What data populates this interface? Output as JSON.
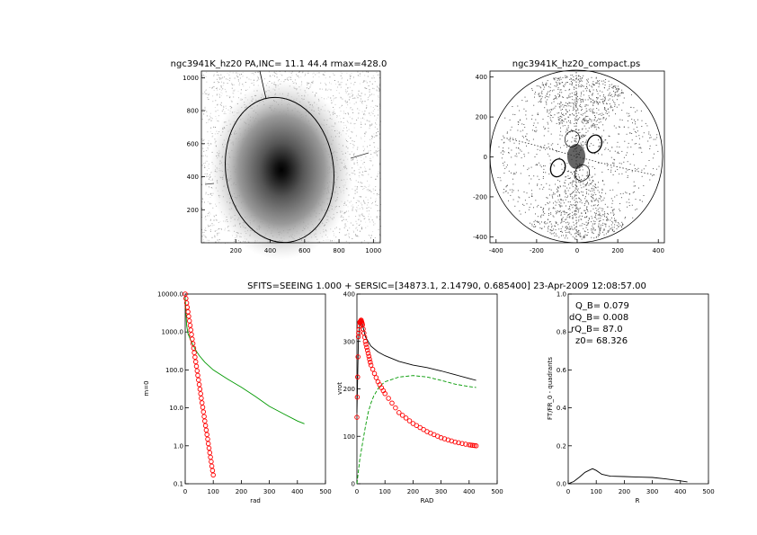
{
  "figure": {
    "suptitle": "SFITS=SEEING 1.000 + SERSIC=[34873.1, 2.14790, 0.685400]  23-Apr-2009 12:08:57.00"
  },
  "chart_data": [
    {
      "id": "image",
      "type": "heatmap",
      "title": "ngc3941K_hz20 PA,INC= 11.1 44.4 rmax=428.0",
      "xlabel": "",
      "ylabel": "",
      "xlim": [
        0,
        1040
      ],
      "ylim": [
        0,
        1040
      ],
      "xticks": [
        200,
        400,
        600,
        800,
        1000
      ],
      "yticks": [
        200,
        400,
        600,
        800,
        1000
      ],
      "galaxy_center": [
        460,
        430
      ],
      "ellipse": {
        "cx": 452,
        "cy": 400,
        "rx": 310,
        "ry": 410
      }
    },
    {
      "id": "compact",
      "type": "scatter",
      "title": "ngc3941K_hz20_compact.ps",
      "xlabel": "",
      "ylabel": "",
      "xlim": [
        -430,
        430
      ],
      "ylim": [
        -430,
        430
      ],
      "xticks": [
        -400,
        -200,
        0,
        200,
        400
      ],
      "yticks": [
        -400,
        -200,
        0,
        200,
        400
      ],
      "circle_radius": 428,
      "small_ellipses": [
        {
          "cx": 85,
          "cy": 65,
          "rx": 35,
          "ry": 45
        },
        {
          "cx": -95,
          "cy": -55,
          "rx": 35,
          "ry": 45
        },
        {
          "cx": -25,
          "cy": 90,
          "rx": 35,
          "ry": 40
        },
        {
          "cx": 25,
          "cy": -80,
          "rx": 35,
          "ry": 40
        }
      ]
    },
    {
      "id": "profile",
      "type": "line",
      "xlabel": "rad",
      "ylabel": "m=0",
      "xlim": [
        0,
        500
      ],
      "ylim": [
        0.1,
        10000
      ],
      "yscale": "log",
      "xticks": [
        0,
        100,
        200,
        300,
        400,
        500
      ],
      "yticks": [
        0.1,
        1,
        10,
        100,
        1000,
        10000
      ],
      "ytick_labels": [
        "0.1",
        "1.0",
        "10.0",
        "100.0",
        "1000.0",
        "10000.0"
      ],
      "series": [
        {
          "color": "#009900",
          "style": "solid",
          "x": [
            0,
            5,
            10,
            20,
            30,
            40,
            50,
            70,
            100,
            150,
            200,
            250,
            300,
            350,
            400,
            425
          ],
          "y": [
            8000,
            1500,
            900,
            600,
            420,
            310,
            240,
            160,
            100,
            58,
            35,
            20,
            11,
            7,
            4.5,
            3.8
          ]
        },
        {
          "color": "#ff0000",
          "style": "markers",
          "x": [
            0,
            10,
            20,
            30,
            40,
            50,
            60,
            70,
            80,
            90,
            100
          ],
          "y": [
            10000,
            3400,
            1130,
            375,
            125,
            41,
            13.6,
            4.5,
            1.5,
            0.5,
            0.17
          ]
        }
      ]
    },
    {
      "id": "rotation",
      "type": "line",
      "xlabel": "RAD",
      "ylabel": "vrot",
      "xlim": [
        0,
        500
      ],
      "ylim": [
        0,
        400
      ],
      "xticks": [
        0,
        100,
        200,
        300,
        400,
        500
      ],
      "yticks": [
        0,
        100,
        200,
        300,
        400
      ],
      "series": [
        {
          "color": "#000000",
          "style": "solid",
          "x": [
            0,
            5,
            10,
            15,
            20,
            30,
            50,
            75,
            100,
            150,
            200,
            250,
            300,
            350,
            400,
            425
          ],
          "y": [
            150,
            300,
            340,
            345,
            335,
            310,
            290,
            278,
            270,
            258,
            250,
            245,
            238,
            230,
            222,
            218
          ]
        },
        {
          "color": "#009900",
          "style": "dashed",
          "x": [
            0,
            10,
            20,
            30,
            40,
            50,
            60,
            80,
            100,
            150,
            200,
            250,
            300,
            350,
            400,
            425
          ],
          "y": [
            0,
            50,
            85,
            120,
            150,
            170,
            185,
            205,
            215,
            225,
            228,
            225,
            218,
            210,
            205,
            203
          ]
        },
        {
          "color": "#ff0000",
          "style": "markers",
          "x": [
            0,
            5,
            10,
            15,
            20,
            30,
            40,
            50,
            75,
            100,
            150,
            200,
            250,
            300,
            350,
            400,
            425
          ],
          "y": [
            140,
            310,
            340,
            345,
            335,
            300,
            275,
            250,
            215,
            190,
            150,
            127,
            110,
            97,
            88,
            82,
            80
          ]
        }
      ]
    },
    {
      "id": "q_b",
      "type": "line",
      "xlabel": "R",
      "ylabel": "FT/FR_0 - quadrants",
      "xlim": [
        0,
        500
      ],
      "ylim": [
        0,
        1
      ],
      "xticks": [
        0,
        100,
        200,
        300,
        400,
        500
      ],
      "yticks": [
        0.0,
        0.2,
        0.4,
        0.6,
        0.8,
        1.0
      ],
      "ytick_labels": [
        "0.0",
        "0.2",
        "0.4",
        "0.6",
        "0.8",
        "1.0"
      ],
      "annotations": [
        "Q_B=  0.079",
        "dQ_B=  0.008",
        "rQ_B=  87.0",
        "z0= 68.326"
      ],
      "series": [
        {
          "color": "#000000",
          "style": "solid",
          "x": [
            0,
            20,
            40,
            60,
            80,
            87,
            100,
            120,
            150,
            200,
            250,
            300,
            350,
            400,
            425
          ],
          "y": [
            0.0,
            0.012,
            0.035,
            0.06,
            0.075,
            0.079,
            0.07,
            0.05,
            0.04,
            0.038,
            0.035,
            0.033,
            0.025,
            0.015,
            0.01
          ]
        }
      ]
    }
  ]
}
